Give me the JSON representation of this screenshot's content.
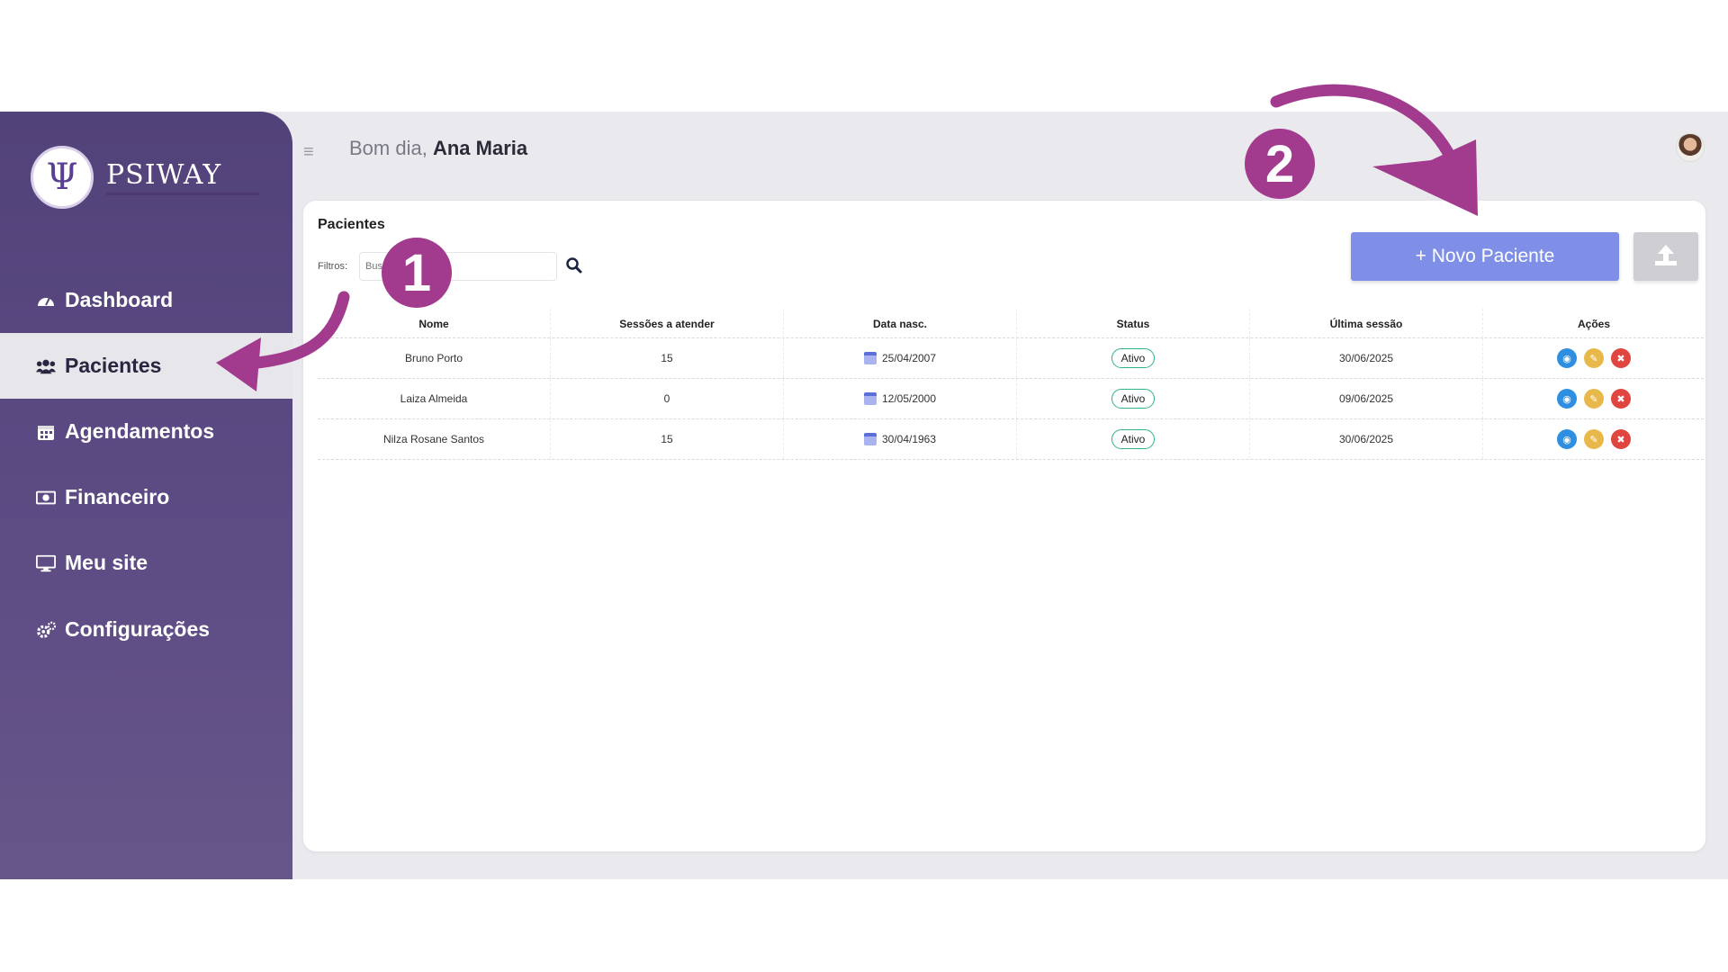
{
  "brand": {
    "name": "PSIWAY"
  },
  "sidebar": {
    "items": [
      {
        "label": "Dashboard",
        "icon": "dashboard-icon"
      },
      {
        "label": "Pacientes",
        "icon": "users-icon",
        "active": true
      },
      {
        "label": "Agendamentos",
        "icon": "calendar-icon"
      },
      {
        "label": "Financeiro",
        "icon": "money-icon"
      },
      {
        "label": "Meu site",
        "icon": "monitor-icon"
      },
      {
        "label": "Configurações",
        "icon": "gears-icon"
      }
    ]
  },
  "header": {
    "greeting": "Bom dia,",
    "user": "Ana Maria"
  },
  "card": {
    "title": "Pacientes",
    "filter_label": "Filtros:",
    "search_placeholder": "Buscar",
    "new_button": "+ Novo Paciente"
  },
  "table": {
    "headers": [
      "Nome",
      "Sessões a atender",
      "Data nasc.",
      "Status",
      "Última sessão",
      "Ações"
    ],
    "rows": [
      {
        "name": "Bruno Porto",
        "sessions": "15",
        "birth": "25/04/2007",
        "status": "Ativo",
        "last": "30/06/2025"
      },
      {
        "name": "Laiza Almeida",
        "sessions": "0",
        "birth": "12/05/2000",
        "status": "Ativo",
        "last": "09/06/2025"
      },
      {
        "name": "Nilza Rosane Santos",
        "sessions": "15",
        "birth": "30/04/1963",
        "status": "Ativo",
        "last": "30/06/2025"
      }
    ]
  },
  "annotations": {
    "step1": "1",
    "step2": "2"
  },
  "colors": {
    "sidebar": "#5b4a82",
    "accent": "#7f8fe8",
    "annotation": "#a23a8e"
  }
}
